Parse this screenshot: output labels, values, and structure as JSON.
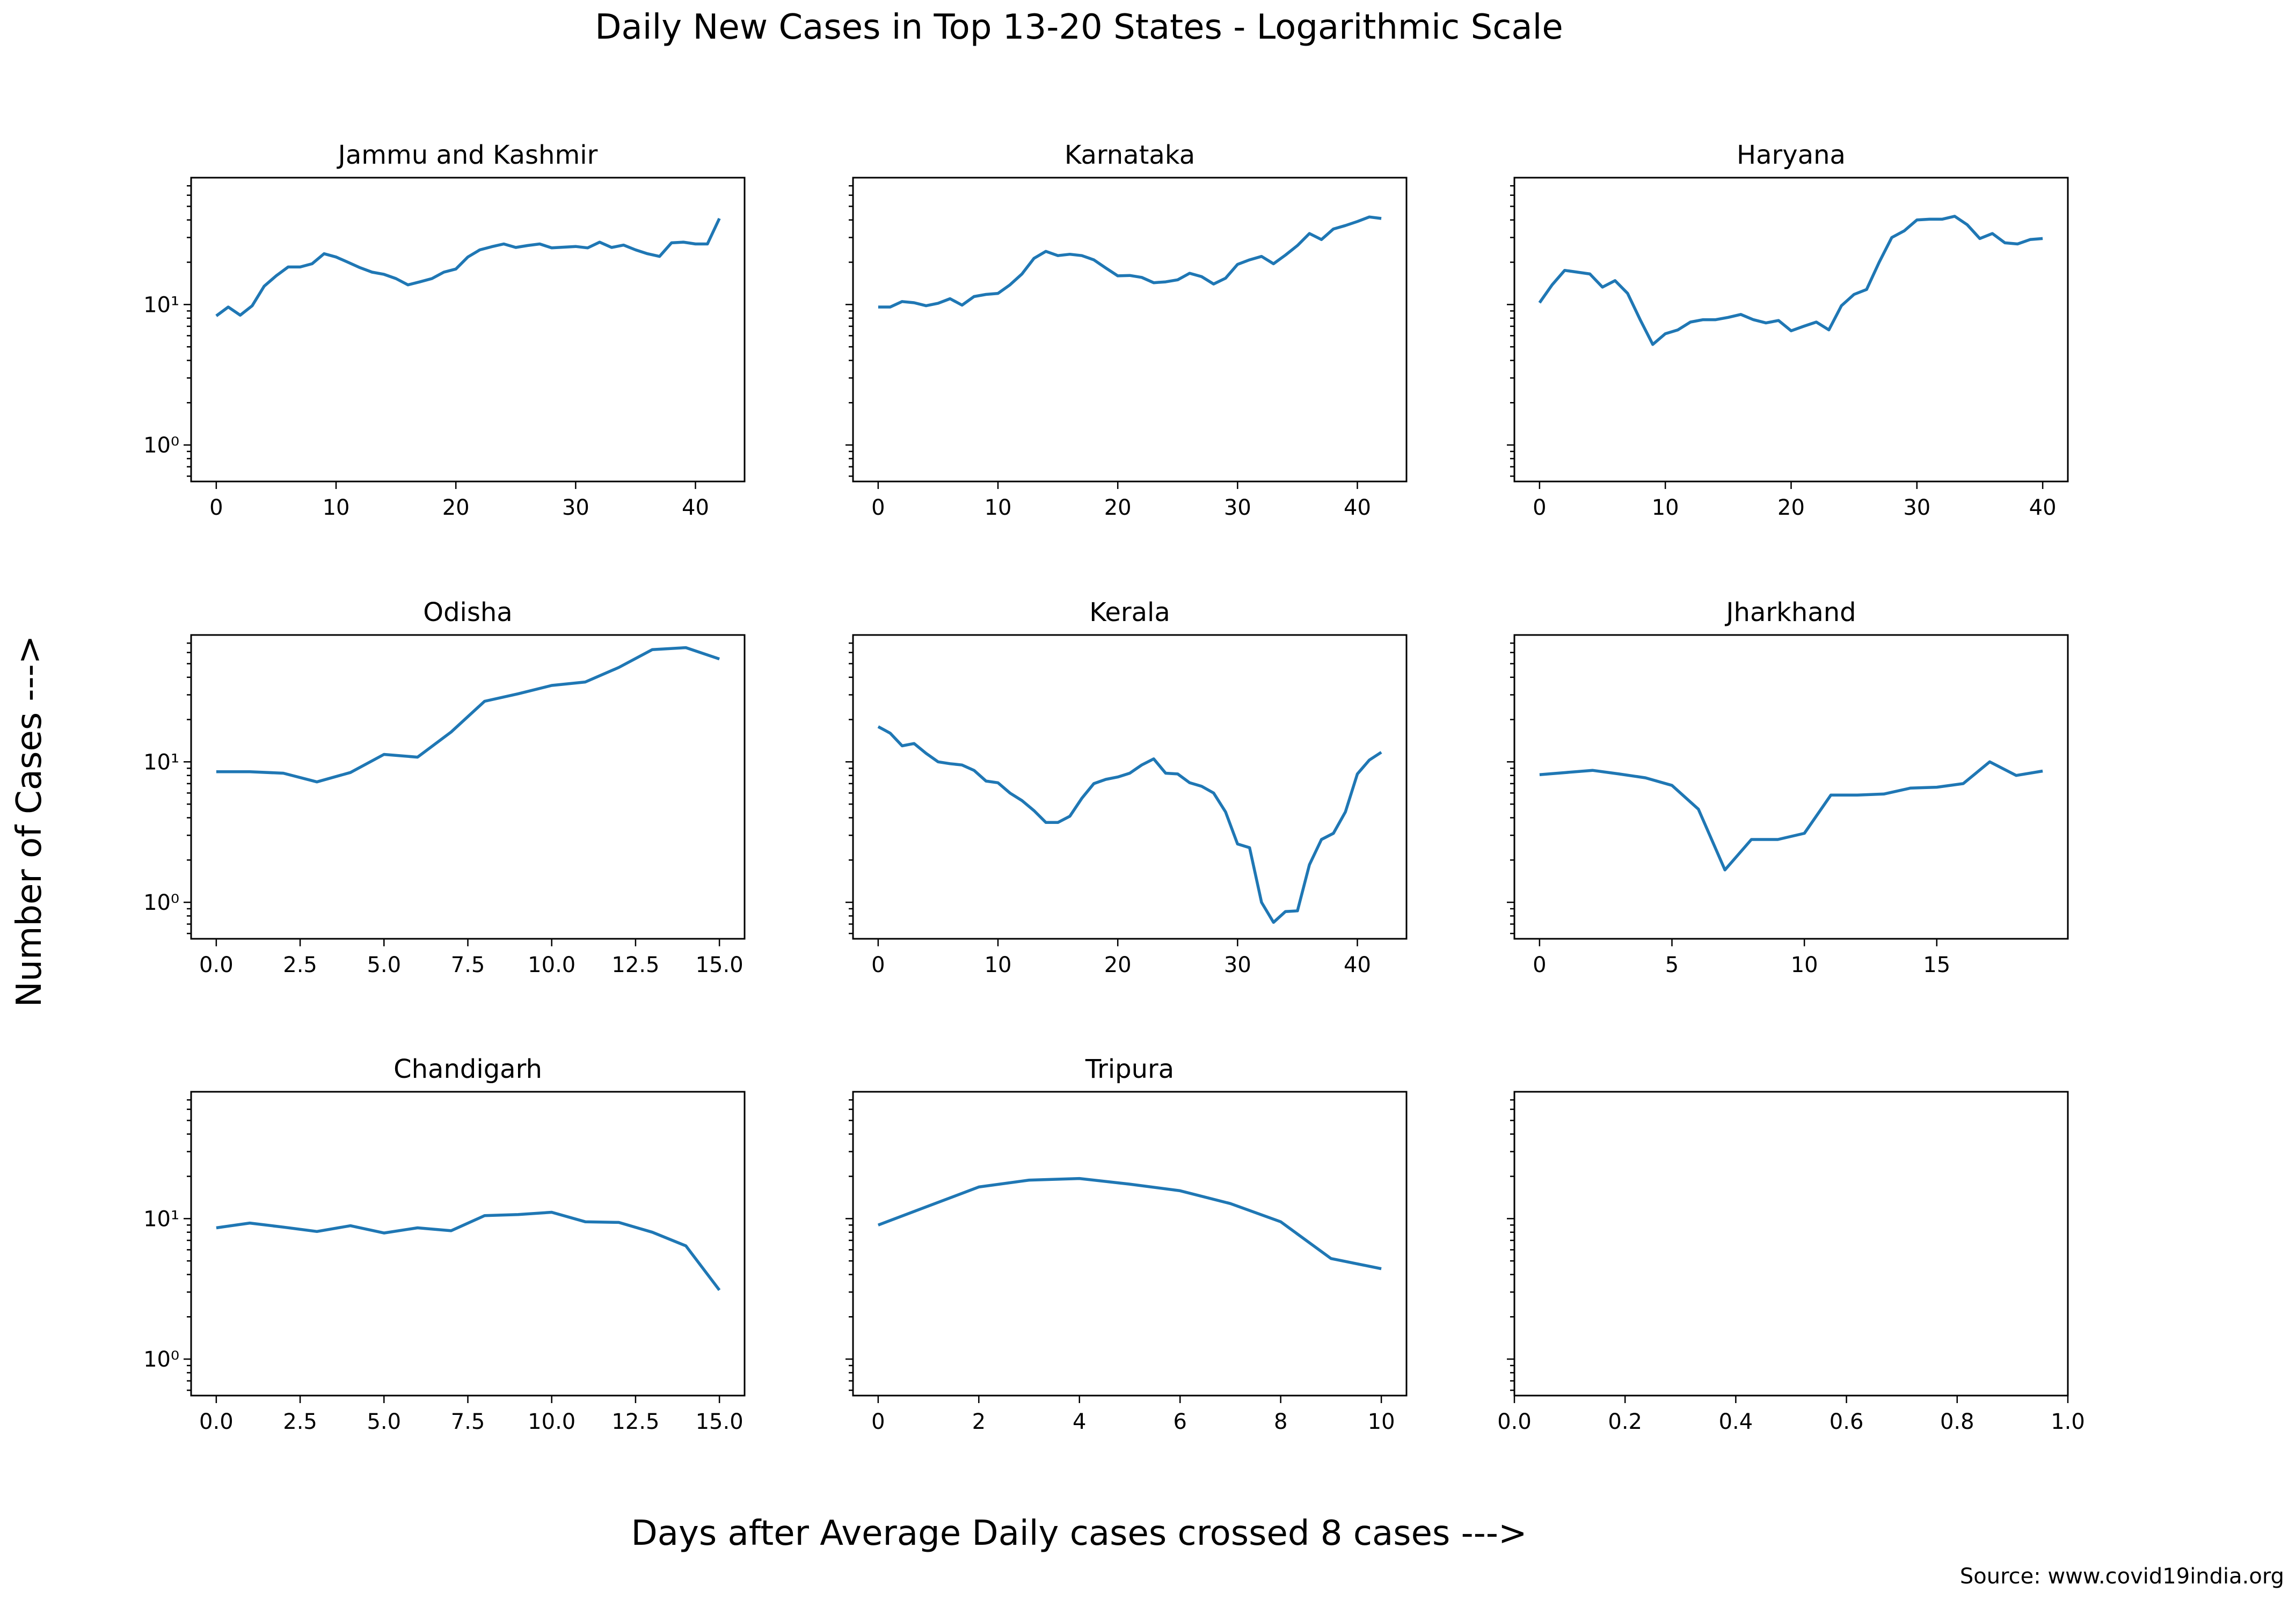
{
  "figure": {
    "title": "Daily New Cases in Top 13-20 States - Logarithmic Scale",
    "xlabel": "Days after Average Daily cases crossed 8 cases --->",
    "ylabel": "Number of Cases --->",
    "source": "Source: www.covid19india.org",
    "line_color": "#1f77b4"
  },
  "chart_data": [
    {
      "type": "line",
      "title": "Jammu and Kashmir",
      "yscale": "log",
      "ylim": [
        0.55,
        80
      ],
      "xlim": [
        -2.1,
        44.1
      ],
      "xticks": [
        0,
        10,
        20,
        30,
        40
      ],
      "xticklabels": [
        "0",
        "10",
        "20",
        "30",
        "40"
      ],
      "yticks": [
        1,
        10
      ],
      "yticklabels": [
        "10⁰",
        "10¹"
      ],
      "show_yticklabels": true,
      "x": [
        0,
        1,
        2,
        3,
        4,
        5,
        6,
        7,
        8,
        9,
        10,
        11,
        12,
        13,
        14,
        15,
        16,
        17,
        18,
        19,
        20,
        21,
        22,
        23,
        24,
        25,
        26,
        27,
        28,
        29,
        30,
        31,
        32,
        33,
        34,
        35,
        36,
        37,
        38,
        39,
        40,
        41,
        42
      ],
      "y": [
        8.3,
        9.6,
        8.4,
        9.8,
        13.5,
        16,
        18.5,
        18.5,
        19.5,
        23,
        21.8,
        20,
        18.3,
        17,
        16.4,
        15.3,
        13.8,
        14.5,
        15.3,
        17,
        17.9,
        21.8,
        24.5,
        25.8,
        27,
        25.5,
        26.3,
        27,
        25.3,
        25.6,
        25.9,
        25.3,
        27.8,
        25.5,
        26.5,
        24.5,
        23,
        22,
        27.5,
        27.8,
        27,
        27,
        41
      ]
    },
    {
      "type": "line",
      "title": "Karnataka",
      "yscale": "log",
      "ylim": [
        0.55,
        80
      ],
      "xlim": [
        -2.1,
        44.1
      ],
      "xticks": [
        0,
        10,
        20,
        30,
        40
      ],
      "xticklabels": [
        "0",
        "10",
        "20",
        "30",
        "40"
      ],
      "yticks": [
        1,
        10
      ],
      "yticklabels": [
        "10⁰",
        "10¹"
      ],
      "show_yticklabels": false,
      "x": [
        0,
        1,
        2,
        3,
        4,
        5,
        6,
        7,
        8,
        9,
        10,
        11,
        12,
        13,
        14,
        15,
        16,
        17,
        18,
        19,
        20,
        21,
        22,
        23,
        24,
        25,
        26,
        27,
        28,
        29,
        30,
        31,
        32,
        33,
        34,
        35,
        36,
        37,
        38,
        39,
        40,
        41,
        42
      ],
      "y": [
        9.6,
        9.6,
        10.5,
        10.3,
        9.8,
        10.2,
        11,
        9.9,
        11.4,
        11.8,
        12,
        13.8,
        16.5,
        21.3,
        23.9,
        22.3,
        22.8,
        22.3,
        20.8,
        18.2,
        16,
        16.1,
        15.6,
        14.3,
        14.5,
        15,
        16.7,
        15.8,
        14,
        15.4,
        19.3,
        20.8,
        22,
        19.5,
        22.5,
        26.3,
        32,
        29,
        34.5,
        36.5,
        39,
        42,
        41
      ]
    },
    {
      "type": "line",
      "title": "Haryana",
      "yscale": "log",
      "ylim": [
        0.55,
        80
      ],
      "xlim": [
        -2.0,
        42.0
      ],
      "xticks": [
        0,
        10,
        20,
        30,
        40
      ],
      "xticklabels": [
        "0",
        "10",
        "20",
        "30",
        "40"
      ],
      "yticks": [
        1,
        10
      ],
      "yticklabels": [
        "10⁰",
        "10¹"
      ],
      "show_yticklabels": false,
      "x": [
        0,
        1,
        2,
        3,
        4,
        5,
        6,
        7,
        8,
        9,
        10,
        11,
        12,
        13,
        14,
        15,
        16,
        17,
        18,
        19,
        20,
        21,
        22,
        23,
        24,
        25,
        26,
        27,
        28,
        29,
        30,
        31,
        32,
        33,
        34,
        35,
        36,
        37,
        38,
        39,
        40
      ],
      "y": [
        10.3,
        13.8,
        17.5,
        17,
        16.5,
        13.3,
        14.8,
        12,
        7.8,
        5.2,
        6.2,
        6.6,
        7.5,
        7.8,
        7.8,
        8.1,
        8.5,
        7.8,
        7.4,
        7.7,
        6.5,
        7,
        7.5,
        6.6,
        9.8,
        11.8,
        12.8,
        20,
        30,
        33.5,
        40,
        40.5,
        40.5,
        42.5,
        37,
        29.5,
        32,
        27.5,
        27,
        29,
        29.5
      ]
    },
    {
      "type": "line",
      "title": "Odisha",
      "yscale": "log",
      "ylim": [
        0.55,
        80
      ],
      "xlim": [
        -0.75,
        15.75
      ],
      "xticks": [
        0,
        2.5,
        5,
        7.5,
        10,
        12.5,
        15
      ],
      "xticklabels": [
        "0.0",
        "2.5",
        "5.0",
        "7.5",
        "10.0",
        "12.5",
        "15.0"
      ],
      "yticks": [
        1,
        10
      ],
      "yticklabels": [
        "10⁰",
        "10¹"
      ],
      "show_yticklabels": true,
      "x": [
        0,
        1,
        2,
        3,
        4,
        5,
        6,
        7,
        8,
        9,
        10,
        11,
        12,
        13,
        14,
        15
      ],
      "y": [
        8.5,
        8.5,
        8.3,
        7.2,
        8.4,
        11.3,
        10.8,
        16.3,
        27,
        30.5,
        35,
        37,
        47,
        63,
        65,
        54
      ]
    },
    {
      "type": "line",
      "title": "Kerala",
      "yscale": "log",
      "ylim": [
        0.55,
        80
      ],
      "xlim": [
        -2.1,
        44.1
      ],
      "xticks": [
        0,
        10,
        20,
        30,
        40
      ],
      "xticklabels": [
        "0",
        "10",
        "20",
        "30",
        "40"
      ],
      "yticks": [
        1,
        10
      ],
      "yticklabels": [
        "10⁰",
        "10¹"
      ],
      "show_yticklabels": false,
      "x": [
        0,
        1,
        2,
        3,
        4,
        5,
        6,
        7,
        8,
        9,
        10,
        11,
        12,
        13,
        14,
        15,
        16,
        17,
        18,
        19,
        20,
        21,
        22,
        23,
        24,
        25,
        26,
        27,
        28,
        29,
        30,
        31,
        32,
        33,
        34,
        35,
        36,
        37,
        38,
        39,
        40,
        41,
        42
      ],
      "y": [
        17.8,
        16,
        13,
        13.5,
        11.5,
        10,
        9.7,
        9.5,
        8.7,
        7.3,
        7.1,
        6,
        5.3,
        4.5,
        3.7,
        3.7,
        4.1,
        5.5,
        7,
        7.5,
        7.8,
        8.3,
        9.5,
        10.5,
        8.3,
        8.2,
        7.1,
        6.7,
        6,
        4.4,
        2.6,
        2.45,
        1,
        0.72,
        0.86,
        0.87,
        1.85,
        2.8,
        3.1,
        4.4,
        8.2,
        10.3,
        11.7
      ]
    },
    {
      "type": "line",
      "title": "Jharkhand",
      "yscale": "log",
      "ylim": [
        0.55,
        80
      ],
      "xlim": [
        -0.95,
        19.95
      ],
      "xticks": [
        0,
        5,
        10,
        15
      ],
      "xticklabels": [
        "0",
        "5",
        "10",
        "15"
      ],
      "yticks": [
        1,
        10
      ],
      "yticklabels": [
        "10⁰",
        "10¹"
      ],
      "show_yticklabels": false,
      "x": [
        0,
        1,
        2,
        3,
        4,
        5,
        6,
        7,
        8,
        9,
        10,
        11,
        12,
        13,
        14,
        15,
        16,
        17,
        18,
        19
      ],
      "y": [
        8.1,
        8.4,
        8.7,
        8.2,
        7.7,
        6.8,
        4.6,
        1.7,
        2.8,
        2.8,
        3.1,
        5.8,
        5.8,
        5.9,
        6.5,
        6.6,
        7,
        10,
        8,
        8.6
      ]
    },
    {
      "type": "line",
      "title": "Chandigarh",
      "yscale": "log",
      "ylim": [
        0.55,
        80
      ],
      "xlim": [
        -0.75,
        15.75
      ],
      "xticks": [
        0,
        2.5,
        5,
        7.5,
        10,
        12.5,
        15
      ],
      "xticklabels": [
        "0.0",
        "2.5",
        "5.0",
        "7.5",
        "10.0",
        "12.5",
        "15.0"
      ],
      "yticks": [
        1,
        10
      ],
      "yticklabels": [
        "10⁰",
        "10¹"
      ],
      "show_yticklabels": true,
      "x": [
        0,
        1,
        2,
        3,
        4,
        5,
        6,
        7,
        8,
        9,
        10,
        11,
        12,
        13,
        14,
        15
      ],
      "y": [
        8.6,
        9.3,
        8.7,
        8.1,
        8.9,
        7.9,
        8.6,
        8.2,
        10.5,
        10.7,
        11.1,
        9.5,
        9.4,
        8,
        6.4,
        3.1
      ]
    },
    {
      "type": "line",
      "title": "Tripura",
      "yscale": "log",
      "ylim": [
        0.55,
        80
      ],
      "xlim": [
        -0.5,
        10.5
      ],
      "xticks": [
        0,
        2,
        4,
        6,
        8,
        10
      ],
      "xticklabels": [
        "0",
        "2",
        "4",
        "6",
        "8",
        "10"
      ],
      "yticks": [
        1,
        10
      ],
      "yticklabels": [
        "10⁰",
        "10¹"
      ],
      "show_yticklabels": false,
      "x": [
        0,
        1,
        2,
        3,
        4,
        5,
        6,
        7,
        8,
        9,
        10
      ],
      "y": [
        9,
        12.3,
        16.8,
        18.8,
        19.3,
        17.6,
        15.8,
        12.8,
        9.5,
        5.2,
        4.4
      ]
    },
    {
      "type": "line",
      "title": "",
      "yscale": "log",
      "ylim": [
        0.55,
        80
      ],
      "xlim": [
        0,
        1
      ],
      "xticks": [
        0,
        0.2,
        0.4,
        0.6,
        0.8,
        1.0
      ],
      "xticklabels": [
        "0.0",
        "0.2",
        "0.4",
        "0.6",
        "0.8",
        "1.0"
      ],
      "yticks": [
        1,
        10
      ],
      "yticklabels": [
        "10⁰",
        "10¹"
      ],
      "show_yticklabels": false,
      "x": [],
      "y": []
    }
  ]
}
